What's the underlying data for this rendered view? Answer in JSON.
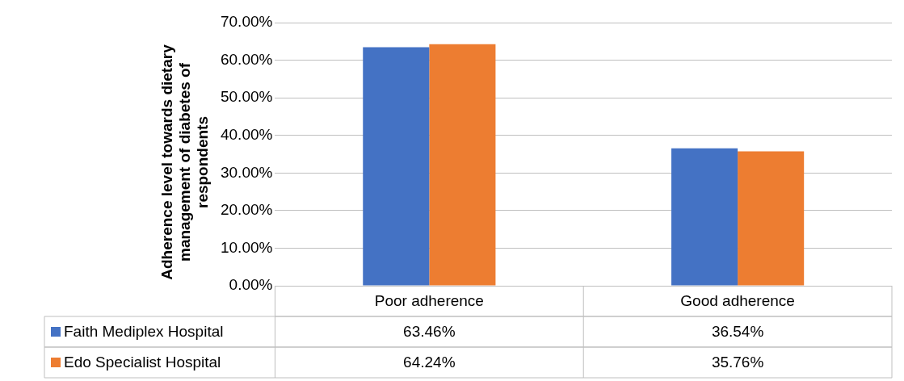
{
  "chart_data": {
    "type": "bar",
    "ylabel": "Adherence level towards dietary management of diabetes of respondents",
    "categories": [
      "Poor adherence",
      "Good adherence"
    ],
    "series": [
      {
        "name": "Faith Mediplex Hospital",
        "color": "#4472c4",
        "values": [
          63.46,
          36.54
        ],
        "value_labels": [
          "63.46%",
          "36.54%"
        ]
      },
      {
        "name": "Edo Specialist Hospital",
        "color": "#ed7d31",
        "values": [
          64.24,
          35.76
        ],
        "value_labels": [
          "64.24%",
          "35.76%"
        ]
      }
    ],
    "ylim": [
      0,
      70
    ],
    "yticks": [
      {
        "value": 0,
        "label": "0.00%"
      },
      {
        "value": 10,
        "label": "10.00%"
      },
      {
        "value": 20,
        "label": "20.00%"
      },
      {
        "value": 30,
        "label": "30.00%"
      },
      {
        "value": 40,
        "label": "40.00%"
      },
      {
        "value": 50,
        "label": "50.00%"
      },
      {
        "value": 60,
        "label": "60.00%"
      },
      {
        "value": 70,
        "label": "70.00%"
      }
    ],
    "grid": "y",
    "legend": "bottom",
    "data_labels": true
  }
}
